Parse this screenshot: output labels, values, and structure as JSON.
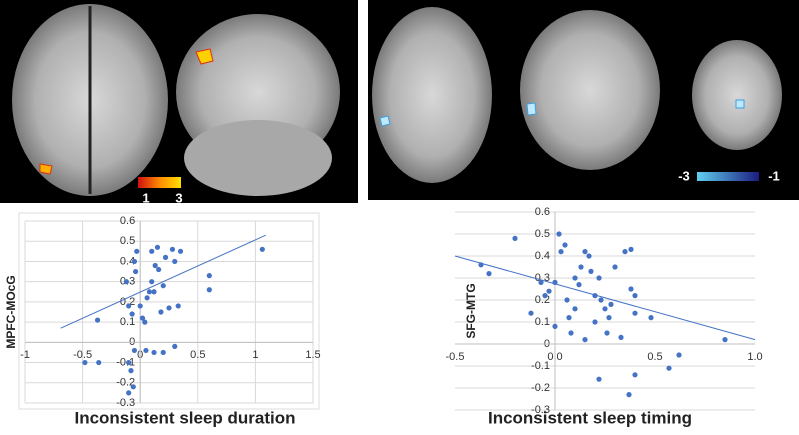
{
  "chart_data": [
    {
      "type": "scatter",
      "y_label": "MPFC-MOcG",
      "x_label": "Inconsistent sleep duration",
      "color": "#4472c4",
      "grid": true,
      "x": [
        -0.48,
        -0.37,
        -0.36,
        -0.12,
        -0.1,
        -0.07,
        -0.05,
        -0.04,
        -0.03,
        -0.1,
        -0.08,
        -0.1,
        -0.06,
        -0.05,
        0.0,
        0.02,
        0.04,
        0.06,
        0.08,
        0.1,
        0.1,
        0.12,
        0.13,
        0.15,
        0.16,
        0.18,
        0.2,
        0.22,
        0.25,
        0.28,
        0.3,
        0.33,
        0.35,
        0.05,
        0.12,
        0.2,
        0.3,
        0.6,
        0.6,
        1.06
      ],
      "values": [
        -0.1,
        0.11,
        -0.1,
        0.3,
        0.18,
        0.14,
        0.4,
        0.35,
        0.45,
        -0.1,
        -0.14,
        -0.25,
        -0.22,
        -0.04,
        0.18,
        0.12,
        0.1,
        0.22,
        0.25,
        0.45,
        0.3,
        0.25,
        0.38,
        0.47,
        0.36,
        0.15,
        0.28,
        0.42,
        0.17,
        0.46,
        0.4,
        0.18,
        0.45,
        -0.04,
        -0.05,
        -0.05,
        -0.02,
        0.33,
        0.26,
        0.46
      ],
      "trendline": {
        "x": [
          -0.69,
          1.09
        ],
        "values": [
          0.07,
          0.53
        ]
      },
      "xlim": [
        -1,
        1.5
      ],
      "xticks": [
        -1,
        -0.5,
        0,
        0.5,
        1,
        1.5
      ],
      "ylim": [
        -0.3,
        0.6
      ],
      "yticks": [
        -0.3,
        -0.2,
        -0.1,
        0,
        0.1,
        0.2,
        0.3,
        0.4,
        0.5,
        0.6
      ]
    },
    {
      "type": "scatter",
      "y_label": "SFG-MTG",
      "x_label": "Inconsistent sleep timing",
      "color": "#4472c4",
      "grid": true,
      "x": [
        -0.37,
        -0.33,
        -0.2,
        -0.12,
        -0.07,
        -0.05,
        -0.03,
        0.0,
        0.0,
        0.02,
        0.03,
        0.05,
        0.06,
        0.07,
        0.08,
        0.1,
        0.12,
        0.13,
        0.15,
        0.15,
        0.17,
        0.18,
        0.2,
        0.2,
        0.22,
        0.23,
        0.25,
        0.26,
        0.28,
        0.3,
        0.22,
        0.33,
        0.35,
        0.38,
        0.38,
        0.4,
        0.4,
        0.37,
        0.4,
        0.48,
        0.57,
        0.62,
        0.85,
        0.1,
        0.27
      ],
      "values": [
        0.36,
        0.32,
        0.48,
        0.14,
        0.28,
        0.22,
        0.24,
        0.28,
        0.08,
        0.5,
        0.42,
        0.45,
        0.2,
        0.12,
        0.05,
        0.16,
        0.27,
        0.35,
        0.42,
        0.02,
        0.4,
        0.33,
        0.22,
        0.1,
        0.3,
        0.2,
        0.16,
        0.05,
        0.18,
        0.35,
        -0.16,
        0.03,
        0.42,
        0.43,
        0.25,
        0.14,
        0.22,
        -0.23,
        -0.14,
        0.12,
        -0.11,
        -0.05,
        0.02,
        0.3,
        0.12
      ],
      "trendline": {
        "x": [
          -0.5,
          1.0
        ],
        "values": [
          0.4,
          0.02
        ]
      },
      "xlim": [
        -0.5,
        1.0
      ],
      "xticks": [
        -0.5,
        {
          "value": 0,
          "label": "0.0"
        },
        0.5,
        {
          "value": 1,
          "label": "1.0"
        }
      ],
      "ylim": [
        -0.3,
        0.6
      ],
      "yticks": [
        -0.3,
        -0.2,
        -0.1,
        0,
        0.1,
        0.2,
        0.3,
        0.4,
        0.5,
        0.6
      ]
    }
  ],
  "colorbars": [
    {
      "min_label": "1",
      "max_label": "3"
    },
    {
      "min_label": "-3",
      "max_label": "-1"
    }
  ]
}
